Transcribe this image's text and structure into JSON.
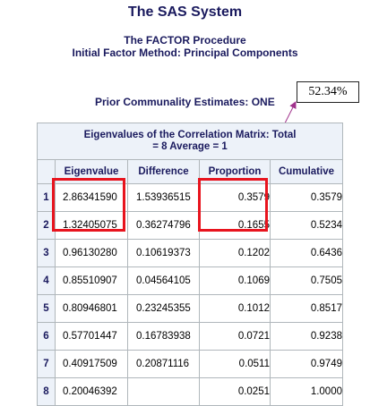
{
  "titles": {
    "system": "The SAS System",
    "procedure": "The FACTOR Procedure",
    "method": "Initial Factor Method: Principal Components",
    "prior": "Prior Communality Estimates: ONE"
  },
  "callout": {
    "text": "52.34%",
    "arrow_color": "#a0328c"
  },
  "highlight_color": "#e8141e",
  "table": {
    "caption_line1": "Eigenvalues of the Correlation Matrix: Total",
    "caption_line2": "= 8 Average = 1",
    "headers": [
      "Eigenvalue",
      "Difference",
      "Proportion",
      "Cumulative"
    ],
    "rows": [
      {
        "n": "1",
        "eigen": "2.86341590",
        "diff": "1.53936515",
        "prop": "0.3579",
        "cum": "0.3579"
      },
      {
        "n": "2",
        "eigen": "1.32405075",
        "diff": "0.36274796",
        "prop": "0.1655",
        "cum": "0.5234"
      },
      {
        "n": "3",
        "eigen": "0.96130280",
        "diff": "0.10619373",
        "prop": "0.1202",
        "cum": "0.6436"
      },
      {
        "n": "4",
        "eigen": "0.85510907",
        "diff": "0.04564105",
        "prop": "0.1069",
        "cum": "0.7505"
      },
      {
        "n": "5",
        "eigen": "0.80946801",
        "diff": "0.23245355",
        "prop": "0.1012",
        "cum": "0.8517"
      },
      {
        "n": "6",
        "eigen": "0.57701447",
        "diff": "0.16783938",
        "prop": "0.0721",
        "cum": "0.9238"
      },
      {
        "n": "7",
        "eigen": "0.40917509",
        "diff": "0.20871116",
        "prop": "0.0511",
        "cum": "0.9749"
      },
      {
        "n": "8",
        "eigen": "0.20046392",
        "diff": "",
        "prop": "0.0251",
        "cum": "1.0000"
      }
    ]
  }
}
